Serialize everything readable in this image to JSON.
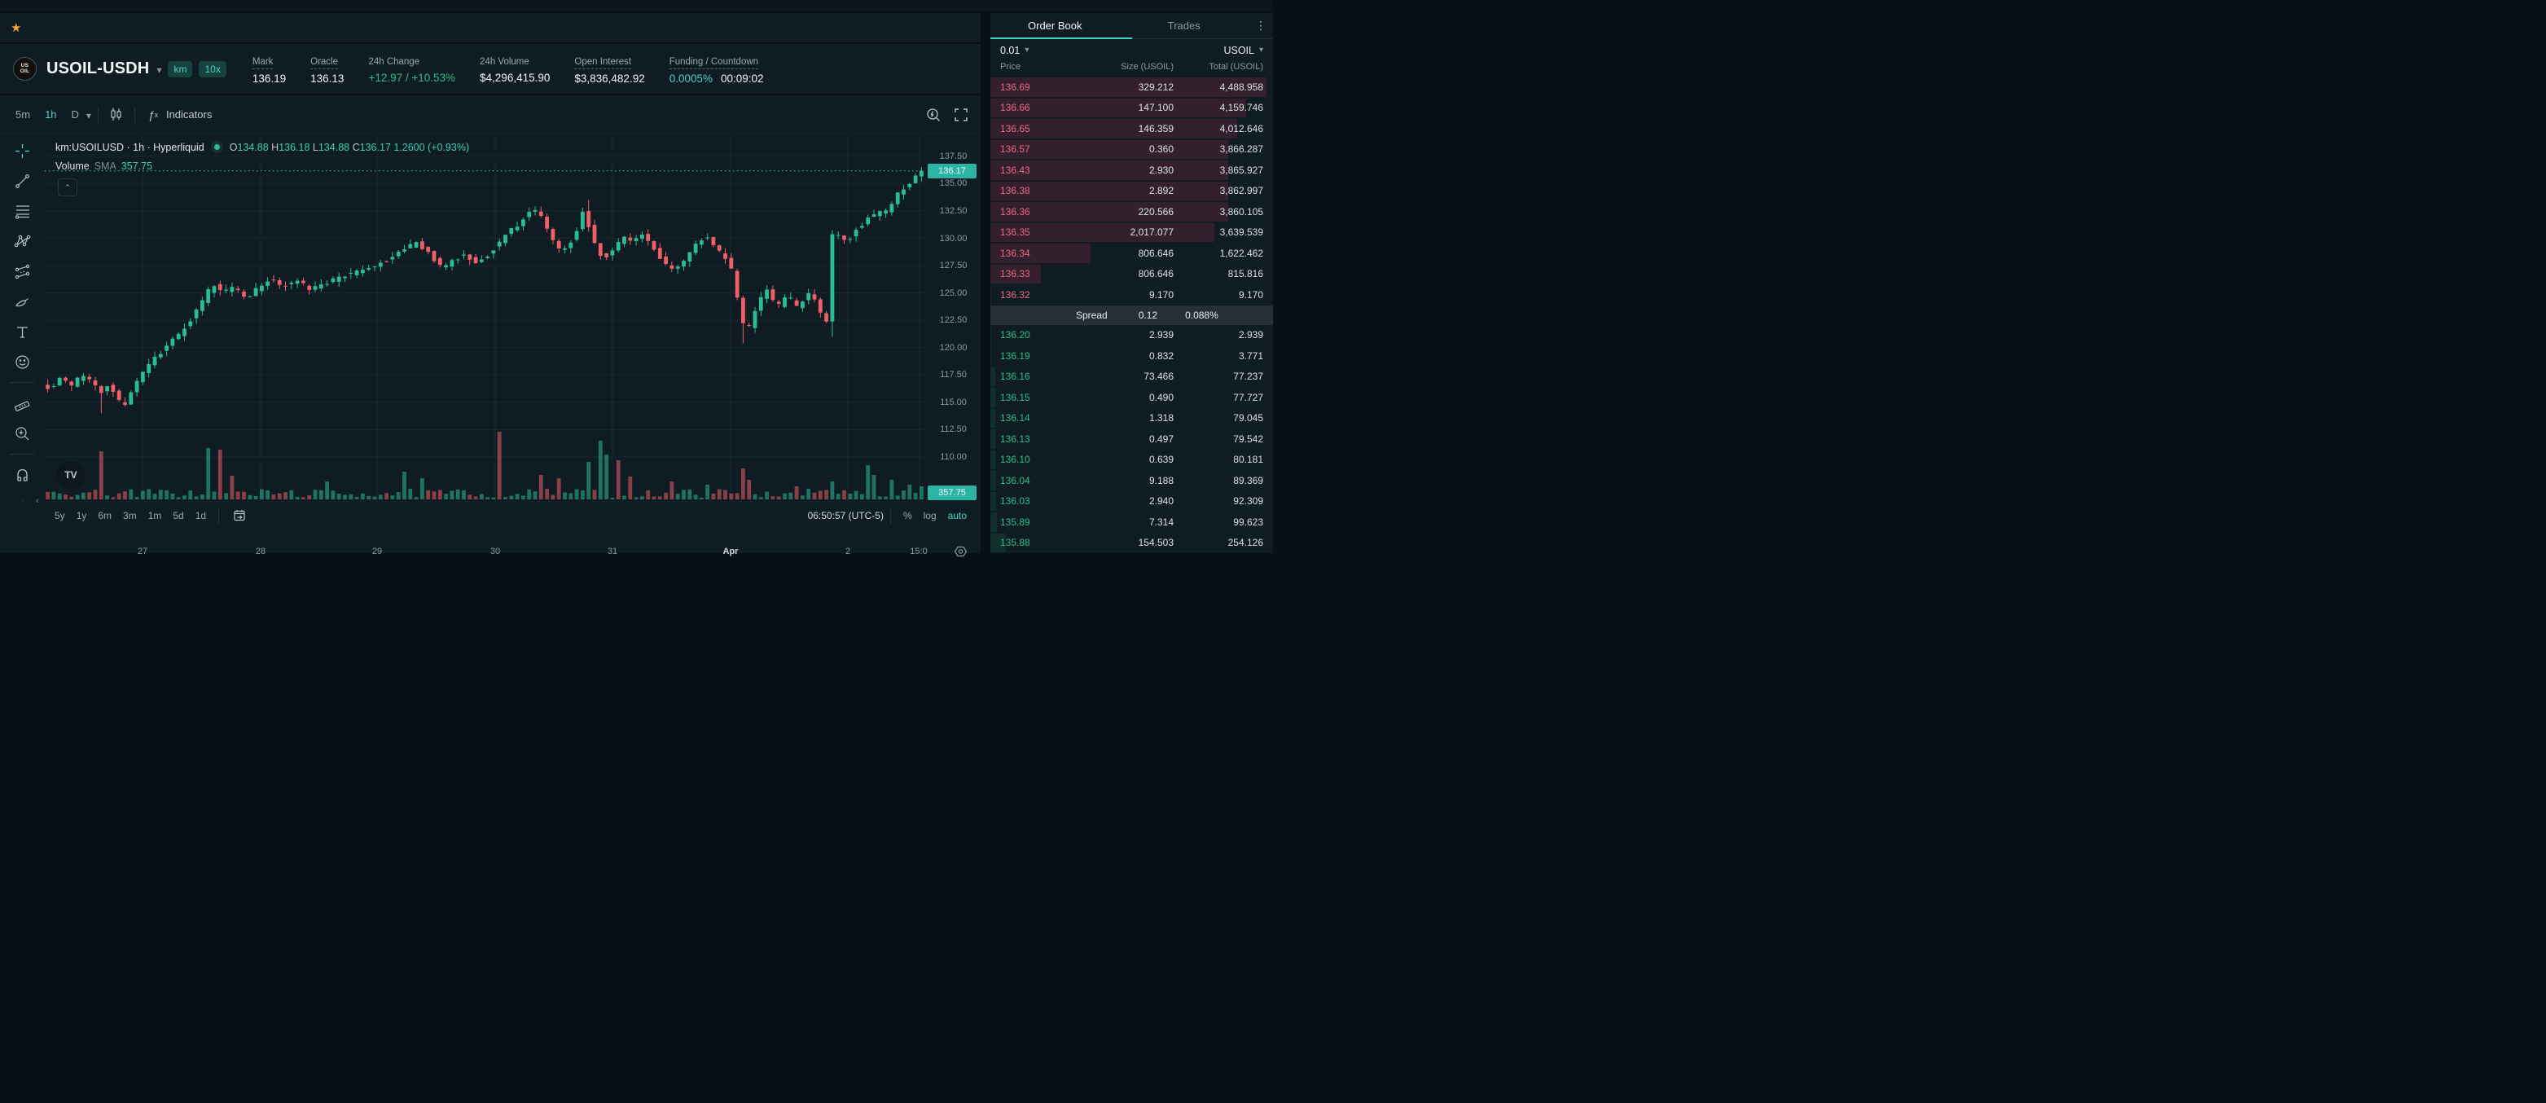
{
  "colors": {
    "accent_teal": "#4fd2c1",
    "candle_up": "#2abd92",
    "candle_down": "#ef5f67",
    "ask_red": "#ee6684",
    "bid_green": "#2ebd85",
    "badge_bg": "#2bb3a3",
    "amber_star": "#f0a63f"
  },
  "header": {
    "favorites_star": "★",
    "coin_line1": "US",
    "coin_line2": "OIL",
    "symbol": "USOIL-USDH",
    "badges": [
      "km",
      "10x"
    ],
    "stats": [
      {
        "label": "Mark",
        "value": "136.19",
        "dash": true
      },
      {
        "label": "Oracle",
        "value": "136.13",
        "dash": true
      },
      {
        "label": "24h Change",
        "value": "+12.97 / +10.53%",
        "green": true
      },
      {
        "label": "24h Volume",
        "value": "$4,296,415.90"
      },
      {
        "label": "Open Interest",
        "value": "$3,836,482.92",
        "dash": true
      },
      {
        "label": "Funding / Countdown",
        "value": "0.0005%",
        "value2": "00:09:02",
        "dash": true,
        "teal": true
      }
    ]
  },
  "chart": {
    "toolbar": {
      "intervals": [
        "5m",
        "1h",
        "D"
      ],
      "active_interval": "1h",
      "indicators_label": "Indicators"
    },
    "legend": {
      "title": "km:USOILUSD · 1h · Hyperliquid",
      "ohlc": [
        {
          "k": "O",
          "v": "134.88"
        },
        {
          "k": "H",
          "v": "136.18"
        },
        {
          "k": "L",
          "v": "134.88"
        },
        {
          "k": "C",
          "v": "136.17"
        }
      ],
      "change": "1.2600 (+0.93%)",
      "volume_label": "Volume",
      "sma_label": "SMA",
      "sma_value": "357.75",
      "watermark": "TV",
      "collapse_glyph": "⌃",
      "left_chevron": "‹"
    },
    "price_axis": {
      "ticks": [
        137.5,
        135.0,
        132.5,
        130.0,
        127.5,
        125.0,
        122.5,
        120.0,
        117.5,
        115.0,
        112.5,
        110.0
      ],
      "tick_labels": [
        "137.50",
        "135.00",
        "132.50",
        "130.00",
        "127.50",
        "125.00",
        "122.50",
        "120.00",
        "117.50",
        "115.00",
        "112.50",
        "110.00"
      ],
      "current_label": "136.17",
      "volume_badge": "357.75"
    },
    "time_axis": {
      "labels": [
        {
          "t": "27",
          "x": 175
        },
        {
          "t": "28",
          "x": 320
        },
        {
          "t": "29",
          "x": 463
        },
        {
          "t": "30",
          "x": 608
        },
        {
          "t": "31",
          "x": 752
        },
        {
          "t": "Apr",
          "x": 897,
          "bold": true
        },
        {
          "t": "2",
          "x": 1041
        },
        {
          "t": "15:0",
          "x": 1128
        }
      ]
    },
    "bottom": {
      "ranges": [
        "5y",
        "1y",
        "6m",
        "3m",
        "1m",
        "5d",
        "1d"
      ],
      "clock": "06:50:57 (UTC-5)",
      "scale_buttons": [
        "%",
        "log",
        "auto"
      ],
      "active_scale": "auto"
    },
    "drawing_tools": [
      "crosshair",
      "trend-line",
      "fib-retracement",
      "xabcd-pattern",
      "parallel-channel",
      "brush",
      "text",
      "emoji",
      "ruler",
      "zoom-in",
      "magnet",
      "drawing-lock",
      "lock-all",
      "hide-drawings"
    ]
  },
  "chart_data": {
    "type": "candlestick+volume",
    "symbol": "km:USOILUSD",
    "interval": "1h",
    "exchange": "Hyperliquid",
    "visible_ohlc": {
      "open": 134.88,
      "high": 136.18,
      "low": 134.88,
      "close": 136.17,
      "change": "1.2600",
      "change_pct": "+0.93%"
    },
    "current_price": 136.17,
    "volume_sma": 357.75,
    "candle_count": 148,
    "y_ticks": [
      137.5,
      135.0,
      132.5,
      130.0,
      127.5,
      125.0,
      122.5,
      120.0,
      117.5,
      115.0,
      112.5,
      110.0
    ],
    "x_gridlines": [
      175,
      320,
      463,
      608,
      752,
      897,
      1041,
      1129
    ],
    "price_keyframes": [
      [
        0.0,
        116.8
      ],
      [
        0.01,
        116.2
      ],
      [
        0.022,
        117.3
      ],
      [
        0.034,
        116.5
      ],
      [
        0.046,
        117.6
      ],
      [
        0.058,
        116.6
      ],
      [
        0.066,
        115.9
      ],
      [
        0.076,
        116.8
      ],
      [
        0.086,
        115.2
      ],
      [
        0.095,
        114.9
      ],
      [
        0.105,
        116.4
      ],
      [
        0.118,
        118.0
      ],
      [
        0.135,
        119.6
      ],
      [
        0.155,
        121.2
      ],
      [
        0.175,
        123.2
      ],
      [
        0.194,
        125.8
      ],
      [
        0.205,
        125.0
      ],
      [
        0.218,
        125.6
      ],
      [
        0.232,
        124.6
      ],
      [
        0.245,
        125.4
      ],
      [
        0.26,
        126.3
      ],
      [
        0.275,
        125.6
      ],
      [
        0.29,
        126.2
      ],
      [
        0.305,
        125.2
      ],
      [
        0.32,
        125.8
      ],
      [
        0.34,
        126.5
      ],
      [
        0.36,
        126.9
      ],
      [
        0.378,
        127.4
      ],
      [
        0.395,
        128.2
      ],
      [
        0.41,
        128.8
      ],
      [
        0.425,
        129.6
      ],
      [
        0.44,
        128.6
      ],
      [
        0.455,
        127.3
      ],
      [
        0.468,
        128.0
      ],
      [
        0.48,
        128.6
      ],
      [
        0.493,
        127.8
      ],
      [
        0.505,
        128.3
      ],
      [
        0.516,
        129.3
      ],
      [
        0.528,
        130.4
      ],
      [
        0.54,
        131.2
      ],
      [
        0.552,
        132.2
      ],
      [
        0.563,
        132.6
      ],
      [
        0.57,
        131.8
      ],
      [
        0.578,
        130.1
      ],
      [
        0.585,
        129.3
      ],
      [
        0.592,
        128.8
      ],
      [
        0.6,
        129.6
      ],
      [
        0.61,
        130.9
      ],
      [
        0.614,
        132.8
      ],
      [
        0.62,
        131.4
      ],
      [
        0.627,
        129.8
      ],
      [
        0.634,
        128.6
      ],
      [
        0.64,
        128.2
      ],
      [
        0.648,
        128.9
      ],
      [
        0.656,
        129.7
      ],
      [
        0.664,
        130.2
      ],
      [
        0.672,
        129.4
      ],
      [
        0.68,
        130.5
      ],
      [
        0.688,
        129.8
      ],
      [
        0.695,
        129.0
      ],
      [
        0.703,
        128.2
      ],
      [
        0.71,
        127.6
      ],
      [
        0.718,
        127.2
      ],
      [
        0.726,
        127.8
      ],
      [
        0.734,
        128.4
      ],
      [
        0.742,
        129.2
      ],
      [
        0.75,
        129.9
      ],
      [
        0.758,
        130.1
      ],
      [
        0.765,
        129.3
      ],
      [
        0.772,
        128.6
      ],
      [
        0.778,
        128.1
      ],
      [
        0.784,
        127.1
      ],
      [
        0.79,
        124.9
      ],
      [
        0.796,
        122.6
      ],
      [
        0.801,
        121.3
      ],
      [
        0.806,
        122.4
      ],
      [
        0.812,
        123.6
      ],
      [
        0.818,
        124.6
      ],
      [
        0.824,
        125.2
      ],
      [
        0.83,
        124.4
      ],
      [
        0.836,
        123.7
      ],
      [
        0.842,
        124.3
      ],
      [
        0.848,
        124.9
      ],
      [
        0.854,
        124.2
      ],
      [
        0.86,
        123.6
      ],
      [
        0.866,
        124.4
      ],
      [
        0.872,
        124.9
      ],
      [
        0.878,
        124.3
      ],
      [
        0.884,
        123.3
      ],
      [
        0.889,
        122.1
      ],
      [
        0.893,
        122.5
      ],
      [
        0.897,
        130.1
      ],
      [
        0.903,
        130.4
      ],
      [
        0.909,
        129.9
      ],
      [
        0.915,
        129.6
      ],
      [
        0.921,
        130.3
      ],
      [
        0.927,
        130.9
      ],
      [
        0.933,
        131.3
      ],
      [
        0.939,
        131.9
      ],
      [
        0.945,
        132.1
      ],
      [
        0.951,
        132.4
      ],
      [
        0.957,
        132.2
      ],
      [
        0.963,
        132.9
      ],
      [
        0.969,
        133.6
      ],
      [
        0.975,
        134.2
      ],
      [
        0.981,
        134.7
      ],
      [
        0.987,
        135.2
      ],
      [
        0.993,
        135.8
      ],
      [
        1.0,
        136.3
      ]
    ],
    "wick_events": [
      {
        "f": 0.06,
        "low": 114.0
      },
      {
        "f": 0.614,
        "high": 133.5
      },
      {
        "f": 0.563,
        "high": 132.9
      },
      {
        "f": 0.79,
        "low": 120.4
      },
      {
        "f": 0.889,
        "low": 121.0
      },
      {
        "f": 1.0,
        "high": 136.5
      }
    ],
    "volume_spikes": [
      [
        0.06,
        59,
        "r"
      ],
      [
        0.182,
        63,
        "g"
      ],
      [
        0.198,
        61,
        "r"
      ],
      [
        0.212,
        29,
        "r"
      ],
      [
        0.318,
        22,
        "g"
      ],
      [
        0.405,
        34,
        "g"
      ],
      [
        0.425,
        26,
        "g"
      ],
      [
        0.511,
        83,
        "r"
      ],
      [
        0.56,
        30,
        "r"
      ],
      [
        0.578,
        26,
        "r"
      ],
      [
        0.614,
        46,
        "g"
      ],
      [
        0.625,
        72,
        "g"
      ],
      [
        0.638,
        55,
        "g"
      ],
      [
        0.65,
        48,
        "r"
      ],
      [
        0.66,
        28,
        "r"
      ],
      [
        0.712,
        22,
        "r"
      ],
      [
        0.748,
        18,
        "g"
      ],
      [
        0.79,
        38,
        "r"
      ],
      [
        0.8,
        24,
        "r"
      ],
      [
        0.85,
        16,
        "r"
      ],
      [
        0.893,
        22,
        "g"
      ],
      [
        0.93,
        42,
        "g"
      ],
      [
        0.94,
        30,
        "g"
      ],
      [
        0.96,
        24,
        "g"
      ],
      [
        0.98,
        18,
        "g"
      ],
      [
        0.995,
        16,
        "g"
      ]
    ]
  },
  "order_book": {
    "tabs": [
      "Order Book",
      "Trades"
    ],
    "active_tab": "Order Book",
    "tick": "0.01",
    "asset": "USOIL",
    "columns": [
      "Price",
      "Size (USOIL)",
      "Total (USOIL)"
    ],
    "asks": [
      [
        "136.69",
        "329.212",
        "4,488.958"
      ],
      [
        "136.66",
        "147.100",
        "4,159.746"
      ],
      [
        "136.65",
        "146.359",
        "4,012.646"
      ],
      [
        "136.57",
        "0.360",
        "3,866.287"
      ],
      [
        "136.43",
        "2.930",
        "3,865.927"
      ],
      [
        "136.38",
        "2.892",
        "3,862.997"
      ],
      [
        "136.36",
        "220.566",
        "3,860.105"
      ],
      [
        "136.35",
        "2,017.077",
        "3,639.539"
      ],
      [
        "136.34",
        "806.646",
        "1,622.462"
      ],
      [
        "136.33",
        "806.646",
        "815.816"
      ],
      [
        "136.32",
        "9.170",
        "9.170"
      ]
    ],
    "spread": {
      "label": "Spread",
      "value": "0.12",
      "pct": "0.088%"
    },
    "bids": [
      [
        "136.20",
        "2.939",
        "2.939"
      ],
      [
        "136.19",
        "0.832",
        "3.771"
      ],
      [
        "136.16",
        "73.466",
        "77.237"
      ],
      [
        "136.15",
        "0.490",
        "77.727"
      ],
      [
        "136.14",
        "1.318",
        "79.045"
      ],
      [
        "136.13",
        "0.497",
        "79.542"
      ],
      [
        "136.10",
        "0.639",
        "80.181"
      ],
      [
        "136.04",
        "9.188",
        "89.369"
      ],
      [
        "136.03",
        "2.940",
        "92.309"
      ],
      [
        "135.89",
        "7.314",
        "99.623"
      ],
      [
        "135.88",
        "154.503",
        "254.126"
      ]
    ],
    "max_total": 4488.958
  }
}
